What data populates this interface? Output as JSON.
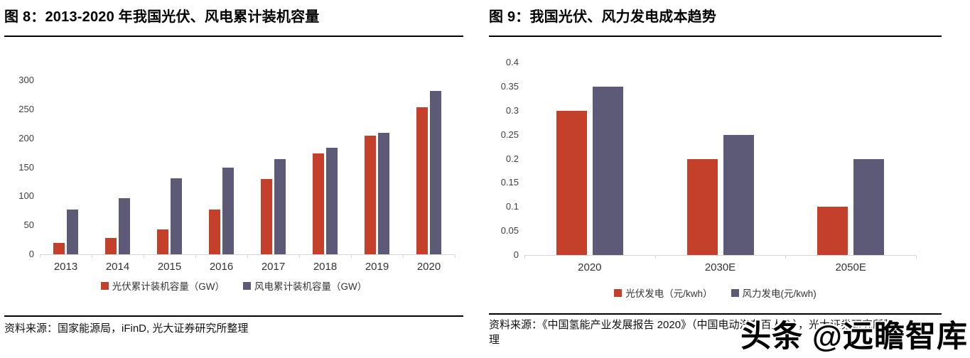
{
  "colors": {
    "pv_red": "#c5402b",
    "wind_purple": "#5c5a77",
    "axis_gray": "#d6d6d6",
    "rule_black": "#000000"
  },
  "figures": [
    {
      "title": "图 8：2013-2020 年我国光伏、风电累计装机容量",
      "source": "资料来源：国家能源局，iFinD, 光大证券研究所整理"
    },
    {
      "title": "图 9：我国光伏、风力发电成本趋势",
      "source": "资料来源：《中国氢能产业发展报告 2020》（中国电动汽车百人会），光大证券研究所整理"
    }
  ],
  "watermark": {
    "text": "头条 @远瞻智库"
  },
  "chart_data": [
    {
      "type": "bar",
      "title": "图 8：2013-2020 年我国光伏、风电累计装机容量",
      "categories": [
        "2013",
        "2014",
        "2015",
        "2016",
        "2017",
        "2018",
        "2019",
        "2020"
      ],
      "series": [
        {
          "name": "光伏累计装机容量（GW）",
          "color": "#c5402b",
          "values": [
            19,
            28,
            43,
            77,
            130,
            174,
            204,
            253
          ]
        },
        {
          "name": "风电累计装机容量（GW）",
          "color": "#5c5a77",
          "values": [
            77,
            97,
            131,
            149,
            164,
            184,
            210,
            282
          ]
        }
      ],
      "xlabel": "",
      "ylabel": "",
      "ylim": [
        0,
        300
      ],
      "ytick_step": 50,
      "grid": false,
      "legend_position": "bottom"
    },
    {
      "type": "bar",
      "title": "图 9：我国光伏、风力发电成本趋势",
      "categories": [
        "2020",
        "2030E",
        "2050E"
      ],
      "series": [
        {
          "name": "光伏发电（元/kwh）",
          "color": "#c5402b",
          "values": [
            0.3,
            0.2,
            0.1
          ]
        },
        {
          "name": "风力发电(元/kwh)",
          "color": "#5c5a77",
          "values": [
            0.35,
            0.25,
            0.2
          ]
        }
      ],
      "xlabel": "",
      "ylabel": "",
      "ylim": [
        0,
        0.4
      ],
      "ytick_step": 0.05,
      "grid": false,
      "legend_position": "bottom"
    }
  ]
}
